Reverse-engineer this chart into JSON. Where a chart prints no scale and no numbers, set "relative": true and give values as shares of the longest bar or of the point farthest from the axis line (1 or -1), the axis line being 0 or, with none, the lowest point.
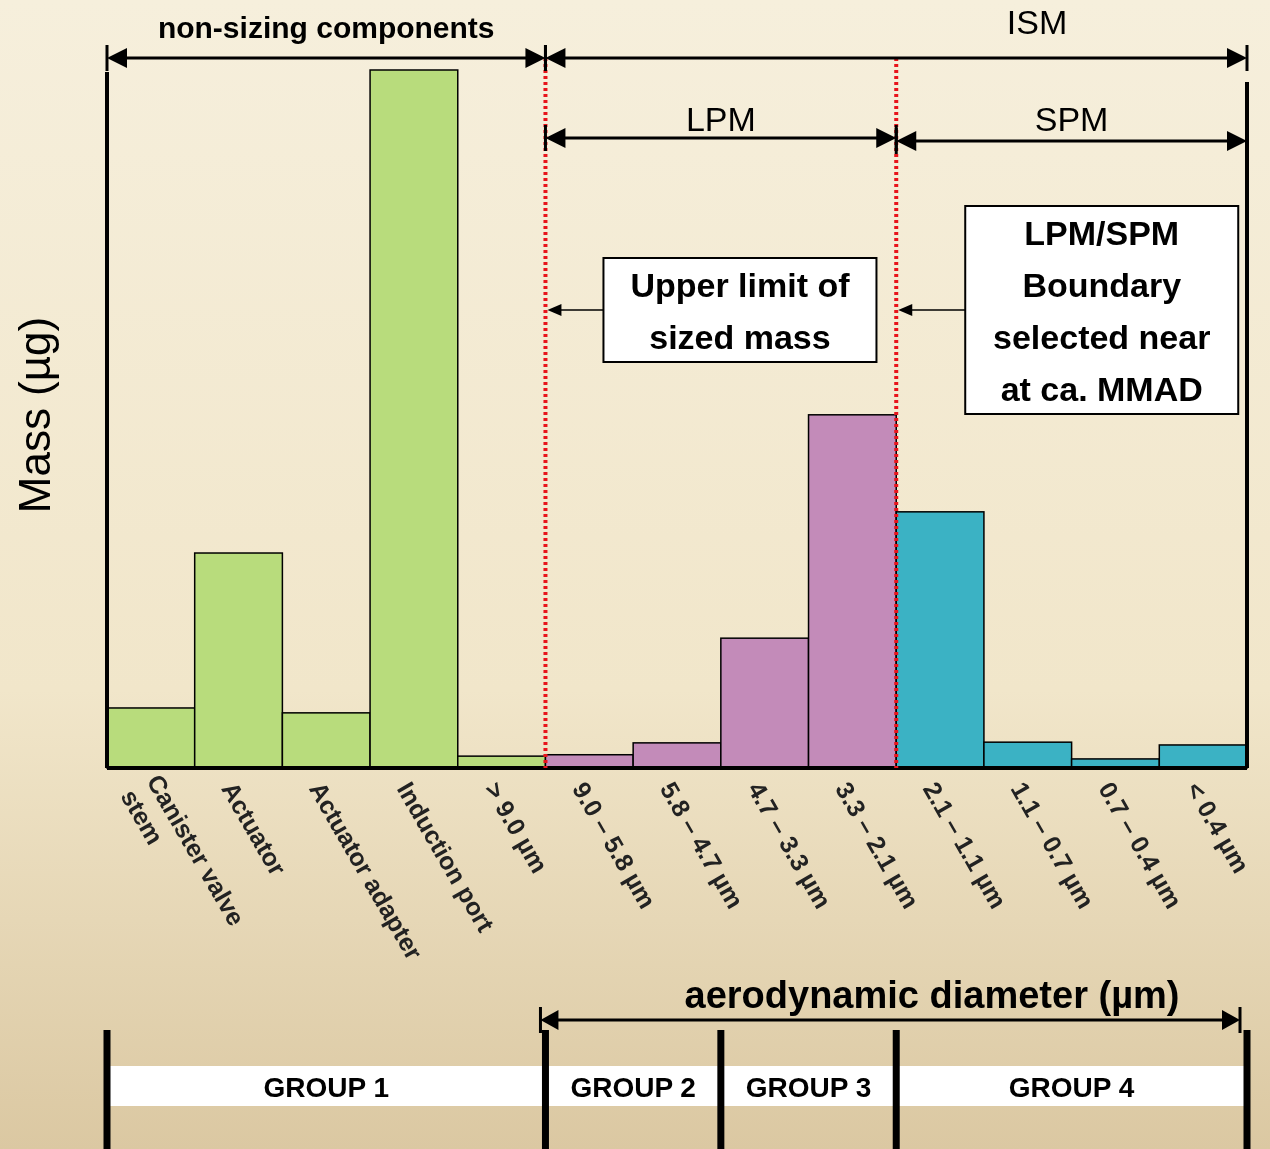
{
  "chart_data": {
    "type": "bar",
    "ylabel": "Mass (µg)",
    "xlabel": "aerodynamic diameter (µm)",
    "categories": [
      "Canister valve stem",
      "Actuator",
      "Actuator adapter",
      "Induction port",
      "> 9.0 µm",
      "9.0 – 5.8 µm",
      "5.8 – 4.7 µm",
      "4.7 – 3.3 µm",
      "3.3 – 2.1 µm",
      "2.1 – 1.1 µm",
      "1.1 – 0.7 µm",
      "0.7 – 0.4 µm",
      "< 0.4 µm"
    ],
    "values": [
      0.086,
      0.308,
      0.079,
      1,
      0.017,
      0.019,
      0.036,
      0.186,
      0.506,
      0.367,
      0.037,
      0.013,
      0.033
    ],
    "colors": [
      "#b8dc7c",
      "#b8dc7c",
      "#b8dc7c",
      "#b8dc7c",
      "#b8dc7c",
      "#c38bb9",
      "#c38bb9",
      "#c38bb9",
      "#c38bb9",
      "#3bb2c4",
      "#3bb2c4",
      "#3bb2c4",
      "#3bb2c4"
    ],
    "ref_lines": [
      {
        "axis": "x",
        "value": "9.0 – 5.8 µm",
        "label": "Upper limit of sized mass",
        "color": "#e8141b",
        "line_style": "dotted"
      },
      {
        "axis": "x",
        "value": "2.1 – 1.1 µm",
        "label": "LPM/SPM Boundary selected near at ca. MMAD",
        "color": "#e8141b",
        "line_style": "dotted"
      }
    ],
    "annotations": [
      "non-sizing components",
      "ISM",
      "LPM",
      "SPM",
      "GROUP 1",
      "GROUP 2",
      "GROUP 3",
      "GROUP 4"
    ],
    "relative": true
  }
}
